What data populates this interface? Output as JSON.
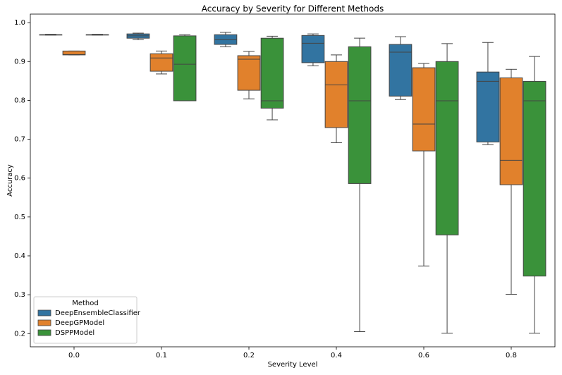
{
  "chart_data": {
    "type": "box",
    "title": "Accuracy by Severity for Different Methods",
    "xlabel": "Severity Level",
    "ylabel": "Accuracy",
    "categories": [
      "0.0",
      "0.1",
      "0.2",
      "0.4",
      "0.6",
      "0.8"
    ],
    "ylim": [
      0.166,
      1.022
    ],
    "yticks": [
      0.2,
      0.3,
      0.4,
      0.5,
      0.6,
      0.7,
      0.8,
      0.9,
      {
        "value": 1,
        "label": "1.0"
      }
    ],
    "legend": {
      "title": "Method",
      "position": "lower left"
    },
    "series": [
      {
        "name": "DeepEnsembleClassifier",
        "color": "#3274a1",
        "values": [
          {
            "min": 0.968,
            "q1": 0.968,
            "median": 0.969,
            "q3": 0.969,
            "max": 0.97
          },
          {
            "min": 0.956,
            "q1": 0.96,
            "median": 0.966,
            "q3": 0.971,
            "max": 0.973
          },
          {
            "min": 0.938,
            "q1": 0.944,
            "median": 0.956,
            "q3": 0.969,
            "max": 0.975
          },
          {
            "min": 0.889,
            "q1": 0.897,
            "median": 0.947,
            "q3": 0.967,
            "max": 0.971
          },
          {
            "min": 0.802,
            "q1": 0.811,
            "median": 0.924,
            "q3": 0.944,
            "max": 0.964
          },
          {
            "min": 0.686,
            "q1": 0.693,
            "median": 0.849,
            "q3": 0.873,
            "max": 0.949
          }
        ]
      },
      {
        "name": "DeepGPModel",
        "color": "#e1812c",
        "values": [
          {
            "min": 0.917,
            "q1": 0.917,
            "median": 0.918,
            "q3": 0.927,
            "max": 0.927
          },
          {
            "min": 0.868,
            "q1": 0.875,
            "median": 0.909,
            "q3": 0.92,
            "max": 0.927
          },
          {
            "min": 0.804,
            "q1": 0.826,
            "median": 0.906,
            "q3": 0.915,
            "max": 0.926
          },
          {
            "min": 0.691,
            "q1": 0.73,
            "median": 0.84,
            "q3": 0.9,
            "max": 0.917
          },
          {
            "min": 0.374,
            "q1": 0.67,
            "median": 0.739,
            "q3": 0.884,
            "max": 0.895
          },
          {
            "min": 0.301,
            "q1": 0.583,
            "median": 0.646,
            "q3": 0.858,
            "max": 0.88
          }
        ]
      },
      {
        "name": "DSPPModel",
        "color": "#3a923a",
        "values": [
          {
            "min": 0.968,
            "q1": 0.968,
            "median": 0.969,
            "q3": 0.969,
            "max": 0.97
          },
          {
            "min": 0.799,
            "q1": 0.799,
            "median": 0.893,
            "q3": 0.966,
            "max": 0.969
          },
          {
            "min": 0.75,
            "q1": 0.78,
            "median": 0.799,
            "q3": 0.96,
            "max": 0.965
          },
          {
            "min": 0.205,
            "q1": 0.586,
            "median": 0.799,
            "q3": 0.938,
            "max": 0.96
          },
          {
            "min": 0.201,
            "q1": 0.454,
            "median": 0.799,
            "q3": 0.9,
            "max": 0.946
          },
          {
            "min": 0.201,
            "q1": 0.348,
            "median": 0.799,
            "q3": 0.849,
            "max": 0.913
          }
        ]
      }
    ]
  }
}
